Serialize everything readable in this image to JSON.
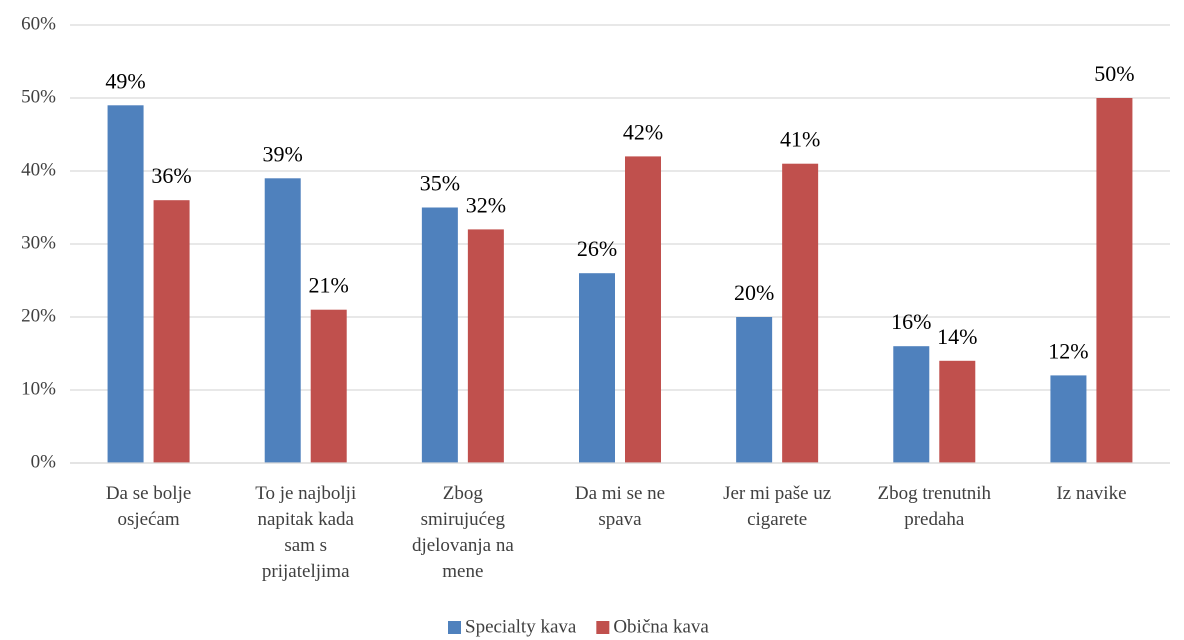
{
  "chart_data": {
    "type": "bar",
    "categories": [
      "Da se bolje osjećam",
      "To je najbolji napitak kada sam s prijateljima",
      "Zbog smirujućeg djelovanja na mene",
      "Da mi se ne spava",
      "Jer mi paše uz cigarete",
      "Zbog trenutnih predaha",
      "Iz navike"
    ],
    "series": [
      {
        "name": "Specialty kava",
        "color": "#4f81bd",
        "values": [
          49,
          39,
          35,
          26,
          20,
          16,
          12
        ],
        "value_labels": [
          "49%",
          "39%",
          "35%",
          "26%",
          "20%",
          "16%",
          "12%"
        ]
      },
      {
        "name": "Obična kava",
        "color": "#c0504d",
        "values": [
          36,
          21,
          32,
          42,
          41,
          14,
          50
        ],
        "value_labels": [
          "36%",
          "21%",
          "32%",
          "42%",
          "41%",
          "14%",
          "50%"
        ]
      }
    ],
    "ylim": [
      0,
      60
    ],
    "yticks": [
      {
        "value": 0,
        "label": "0%"
      },
      {
        "value": 10,
        "label": "10%"
      },
      {
        "value": 20,
        "label": "20%"
      },
      {
        "value": 30,
        "label": "30%"
      },
      {
        "value": 40,
        "label": "40%"
      },
      {
        "value": 50,
        "label": "50%"
      },
      {
        "value": 60,
        "label": "60%"
      }
    ],
    "grid": true,
    "legend": "bottom"
  }
}
